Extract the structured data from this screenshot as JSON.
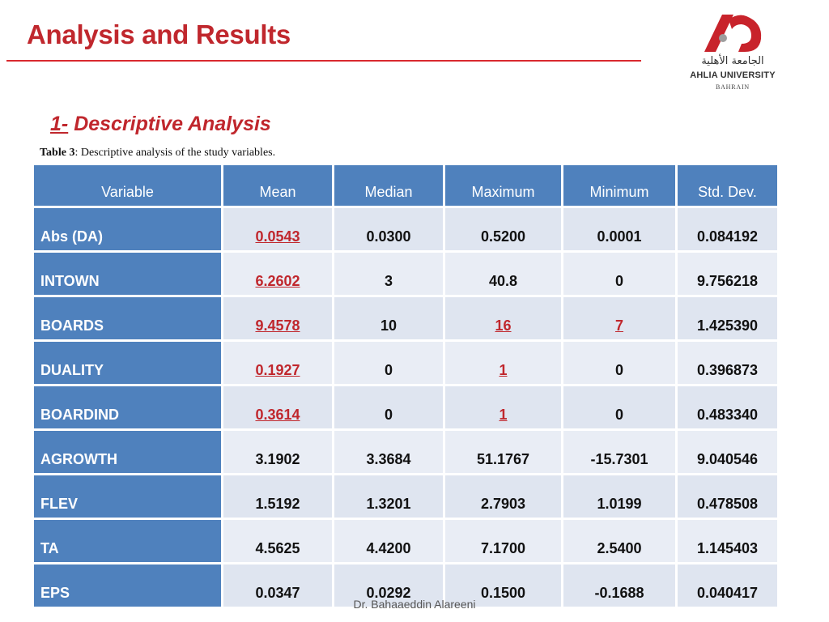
{
  "slide": {
    "title": "Analysis and Results",
    "section_number": "1-",
    "section_heading": "Descriptive Analysis",
    "caption_label": "Table 3",
    "caption_text": ": Descriptive analysis of the study variables.",
    "footer": "Dr. Bahaaeddin Alareeni"
  },
  "logo": {
    "arabic": "الجامعة الأهلية",
    "english": "AHLIA UNIVERSITY",
    "country": "BAHRAIN",
    "colors": {
      "red": "#c8232b",
      "gray": "#9e9e9e"
    }
  },
  "table": {
    "headers": [
      "Variable",
      "Mean",
      "Median",
      "Maximum",
      "Minimum",
      "Std. Dev."
    ],
    "rows": [
      [
        "Abs (DA)",
        "0.0543",
        "0.0300",
        "0.5200",
        "0.0001",
        "0.084192"
      ],
      [
        "INTOWN",
        "6.2602",
        "3",
        "40.8",
        "0",
        "9.756218"
      ],
      [
        "BOARDS",
        "9.4578",
        "10",
        "16",
        "7",
        "1.425390"
      ],
      [
        "DUALITY",
        "0.1927",
        "0",
        "1",
        "0",
        "0.396873"
      ],
      [
        "BOARDIND",
        "0.3614",
        "0",
        "1",
        "0",
        "0.483340"
      ],
      [
        "AGROWTH",
        "3.1902",
        "3.3684",
        "51.1767",
        "-15.7301",
        "9.040546"
      ],
      [
        "FLEV",
        "1.5192",
        "1.3201",
        "2.7903",
        "1.0199",
        "0.478508"
      ],
      [
        "TA",
        "4.5625",
        "4.4200",
        "7.1700",
        "2.5400",
        "1.145403"
      ],
      [
        "EPS",
        "0.0347",
        "0.0292",
        "0.1500",
        "-0.1688",
        "0.040417"
      ]
    ],
    "highlight_color": "#c0272d",
    "header_color": "#4f81bd"
  }
}
